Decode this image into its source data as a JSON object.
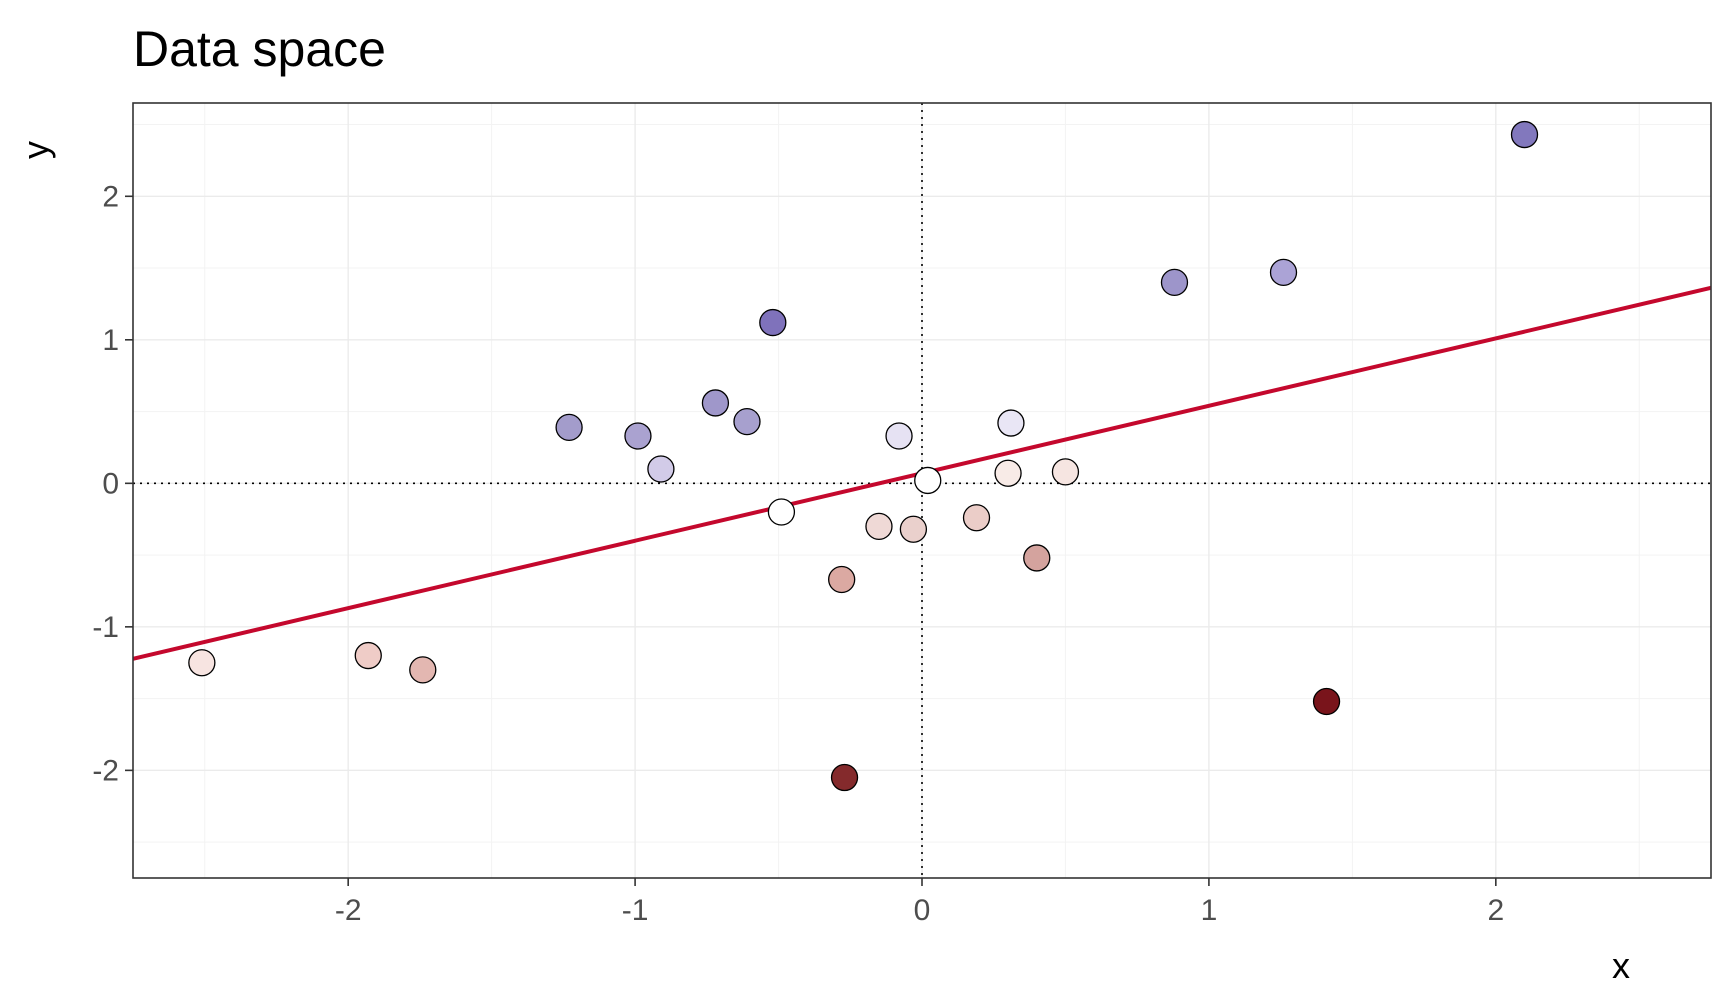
{
  "chart_data": {
    "type": "scatter",
    "title": "Data space",
    "xlabel": "x",
    "ylabel": "y",
    "xlim": [
      -2.75,
      2.75
    ],
    "ylim": [
      -2.75,
      2.65
    ],
    "x_ticks": [
      -2,
      -1,
      0,
      1,
      2
    ],
    "y_ticks": [
      -2,
      -1,
      0,
      1,
      2
    ],
    "x_tick_labels": [
      "-2",
      "-1",
      "0",
      "1",
      "2"
    ],
    "y_tick_labels": [
      "-2",
      "-1",
      "0",
      "1",
      "2"
    ],
    "grid": true,
    "reference_lines": {
      "x": 0,
      "y": 0
    },
    "fit_line": {
      "intercept": 0.07,
      "slope": 0.47,
      "color": "#c4082d"
    },
    "points": [
      {
        "x": -2.51,
        "y": -1.25,
        "color": "#f7e4e1"
      },
      {
        "x": -1.93,
        "y": -1.2,
        "color": "#efccc7"
      },
      {
        "x": -1.74,
        "y": -1.3,
        "color": "#e3b7b1"
      },
      {
        "x": -1.23,
        "y": 0.39,
        "color": "#a39ccb"
      },
      {
        "x": -0.99,
        "y": 0.33,
        "color": "#aaa2d0"
      },
      {
        "x": -0.91,
        "y": 0.1,
        "color": "#d2cbe8"
      },
      {
        "x": -0.72,
        "y": 0.56,
        "color": "#9f97ca"
      },
      {
        "x": -0.61,
        "y": 0.43,
        "color": "#a7a0ce"
      },
      {
        "x": -0.52,
        "y": 1.12,
        "color": "#7f72bb"
      },
      {
        "x": -0.49,
        "y": -0.2,
        "color": "#ffffff"
      },
      {
        "x": -0.28,
        "y": -0.67,
        "color": "#dba9a2"
      },
      {
        "x": -0.27,
        "y": -2.05,
        "color": "#842a2c"
      },
      {
        "x": -0.15,
        "y": -0.3,
        "color": "#efd9d6"
      },
      {
        "x": -0.08,
        "y": 0.33,
        "color": "#e6e2f3"
      },
      {
        "x": -0.03,
        "y": -0.32,
        "color": "#ead0cc"
      },
      {
        "x": 0.02,
        "y": 0.02,
        "color": "#ffffff"
      },
      {
        "x": 0.19,
        "y": -0.24,
        "color": "#ebcdc8"
      },
      {
        "x": 0.3,
        "y": 0.07,
        "color": "#f8ebe7"
      },
      {
        "x": 0.31,
        "y": 0.42,
        "color": "#e9e6f5"
      },
      {
        "x": 0.4,
        "y": -0.52,
        "color": "#d4a39e"
      },
      {
        "x": 0.5,
        "y": 0.08,
        "color": "#f6e5e1"
      },
      {
        "x": 0.88,
        "y": 1.4,
        "color": "#9d95ca"
      },
      {
        "x": 1.26,
        "y": 1.47,
        "color": "#aba3d6"
      },
      {
        "x": 1.41,
        "y": -1.52,
        "color": "#79141b"
      },
      {
        "x": 2.1,
        "y": 2.43,
        "color": "#8278bd"
      }
    ]
  }
}
